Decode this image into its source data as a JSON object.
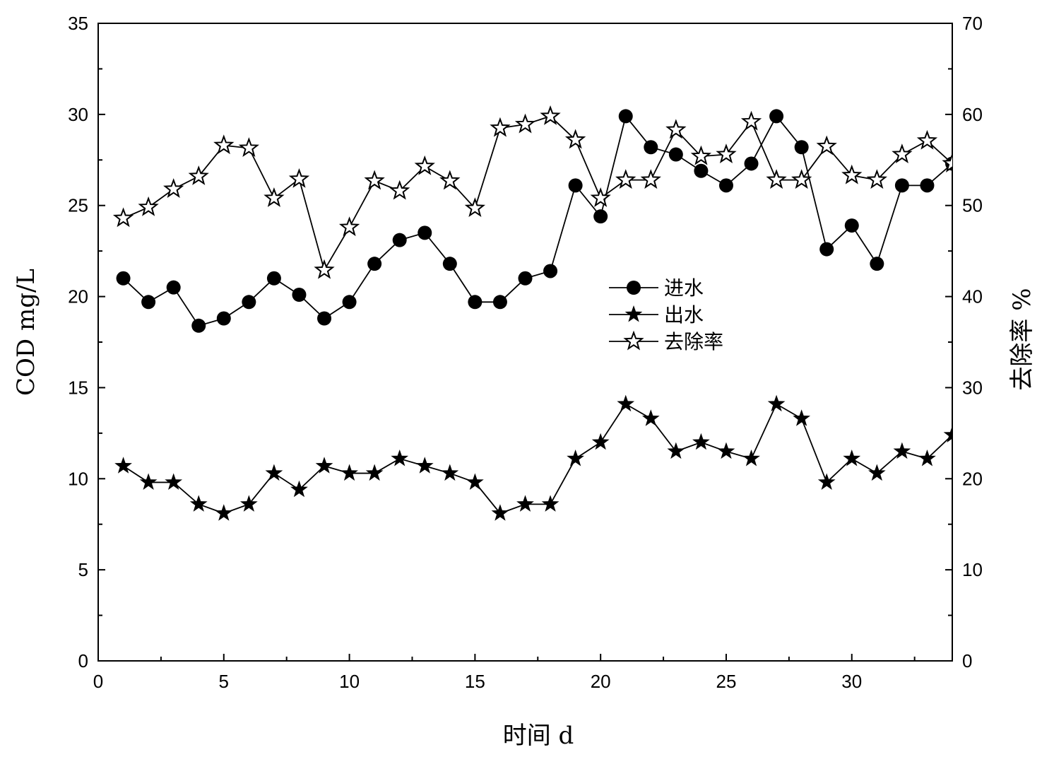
{
  "chart_data": {
    "type": "line",
    "title": "",
    "xlabel": "时间 d",
    "ylabel": "COD mg/L",
    "y2label": "去除率 %",
    "xlim": [
      0,
      34
    ],
    "ylim": [
      0,
      35
    ],
    "y2lim": [
      0,
      70
    ],
    "x_ticks": [
      0,
      5,
      10,
      15,
      20,
      25,
      30
    ],
    "y_ticks": [
      0,
      5,
      10,
      15,
      20,
      25,
      30,
      35
    ],
    "y2_ticks": [
      0,
      10,
      20,
      30,
      40,
      50,
      60,
      70
    ],
    "grid": false,
    "legend_position": "center-right",
    "x": [
      1,
      2,
      3,
      4,
      5,
      6,
      7,
      8,
      9,
      10,
      11,
      12,
      13,
      14,
      15,
      16,
      17,
      18,
      19,
      20,
      21,
      22,
      23,
      24,
      25,
      26,
      27,
      28,
      29,
      30,
      31,
      32,
      33,
      34
    ],
    "series": [
      {
        "name": "进水",
        "axis": "left",
        "marker": "filled-circle",
        "values": [
          21.0,
          19.7,
          20.5,
          18.4,
          18.8,
          19.7,
          21.0,
          20.1,
          18.8,
          19.7,
          21.8,
          23.1,
          23.5,
          21.8,
          19.7,
          19.7,
          21.0,
          21.4,
          26.1,
          24.4,
          29.9,
          28.2,
          27.8,
          26.9,
          26.1,
          27.3,
          29.9,
          28.2,
          22.6,
          23.9,
          21.8,
          26.1,
          26.1,
          27.3
        ]
      },
      {
        "name": "出水",
        "axis": "left",
        "marker": "filled-star",
        "values": [
          10.7,
          9.8,
          9.8,
          8.6,
          8.1,
          8.6,
          10.3,
          9.4,
          10.7,
          10.3,
          10.3,
          11.1,
          10.7,
          10.3,
          9.8,
          8.1,
          8.6,
          8.6,
          11.1,
          12.0,
          14.1,
          13.3,
          11.5,
          12.0,
          11.5,
          11.1,
          14.1,
          13.3,
          9.8,
          11.1,
          10.3,
          11.5,
          11.1,
          12.4
        ]
      },
      {
        "name": "去除率",
        "axis": "right",
        "marker": "open-star",
        "values": [
          48.6,
          49.8,
          51.8,
          53.2,
          56.6,
          56.3,
          50.8,
          52.9,
          42.9,
          47.6,
          52.7,
          51.6,
          54.3,
          52.7,
          49.7,
          58.5,
          58.9,
          59.8,
          57.2,
          50.8,
          52.8,
          52.8,
          58.3,
          55.4,
          55.6,
          59.2,
          52.8,
          52.8,
          56.5,
          53.3,
          52.8,
          55.6,
          57.1,
          54.6
        ]
      }
    ],
    "colors": {
      "line": "#000000",
      "marker": "#000000",
      "background": "#ffffff"
    }
  }
}
